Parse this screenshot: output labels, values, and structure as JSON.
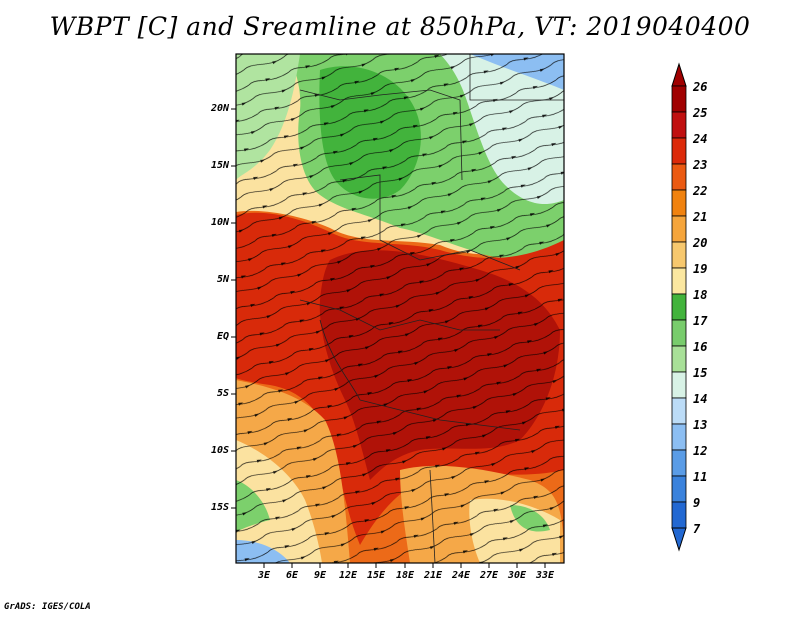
{
  "title": "WBPT [C] and Sreamline at 850hPa, VT: 2019040400",
  "footer": "GrADS: IGES/COLA",
  "axes": {
    "y_labels": [
      "20N",
      "15N",
      "10N",
      "5N",
      "EQ",
      "5S",
      "10S",
      "15S"
    ],
    "x_labels": [
      "3E",
      "6E",
      "9E",
      "12E",
      "15E",
      "18E",
      "21E",
      "24E",
      "27E",
      "30E",
      "33E"
    ]
  },
  "colorbar": {
    "labels": [
      "26",
      "25",
      "24",
      "23",
      "22",
      "21",
      "20",
      "19",
      "18",
      "17",
      "16",
      "15",
      "14",
      "13",
      "12",
      "11",
      "9",
      "7"
    ],
    "colors": [
      "#a00000",
      "#c01010",
      "#dc2a0a",
      "#eb5a12",
      "#f0820f",
      "#f5a53c",
      "#f7c86e",
      "#fbe7a0",
      "#42b33c",
      "#78cc6c",
      "#a8e098",
      "#d8f2e6",
      "#bcdcf7",
      "#8cbef2",
      "#5a9ce6",
      "#3a82dc",
      "#2268d2"
    ]
  },
  "map_colors": {
    "hot_core": "#b01208",
    "hot": "#d82a0a",
    "warm": "#ec6a18",
    "mild": "#f5a848",
    "pale": "#fbe2a0",
    "green_dark": "#42b33c",
    "green": "#7cd06c",
    "green_light": "#b0e4a0",
    "cyan": "#d8f2e6",
    "blue": "#8cbef2"
  }
}
